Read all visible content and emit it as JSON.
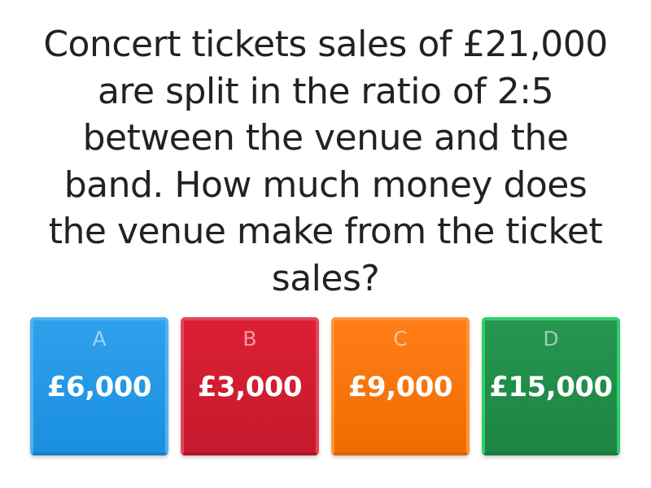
{
  "question": "Concert tickets sales of £21,000 are split in the ratio of 2:5 between the venue and the band. How much money does the venue make from the ticket sales?",
  "answers": [
    {
      "letter": "A",
      "value": "£6,000",
      "color": "#2196e8"
    },
    {
      "letter": "B",
      "value": "£3,000",
      "color": "#d51d31"
    },
    {
      "letter": "C",
      "value": "£9,000",
      "color": "#f87508"
    },
    {
      "letter": "D",
      "value": "£15,000",
      "color": "#228d4a"
    }
  ]
}
